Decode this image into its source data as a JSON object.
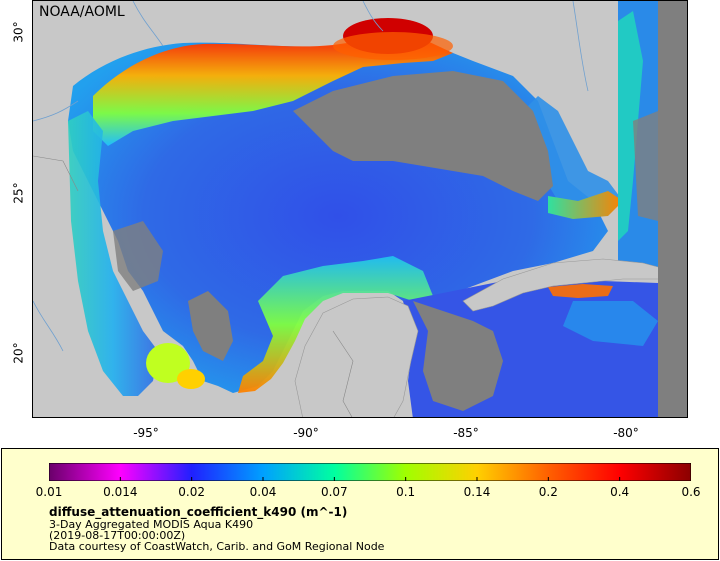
{
  "map": {
    "credit": "NOAA/AOML",
    "lat_ticks": [
      "30°",
      "25°",
      "20°"
    ],
    "lon_ticks": [
      "-95°",
      "-90°",
      "-85°",
      "-80°"
    ],
    "colors": {
      "land": "#c8c8c8",
      "no_data": "#7f7f7f",
      "water_low": "#2f5fe0",
      "water_mid": "#22a8ee",
      "coastal": "#ff6010",
      "river": "#6fa0d0"
    }
  },
  "legend": {
    "ticks": [
      "0.01",
      "0.014",
      "0.02",
      "0.04",
      "0.07",
      "0.1",
      "0.14",
      "0.2",
      "0.4",
      "0.6"
    ],
    "variable": "diffuse_attenuation_coefficient_k490 (m^-1)",
    "dataset": "3-Day Aggregated MODIS Aqua K490",
    "time": "(2019-08-17T00:00:00Z)",
    "attribution": "Data courtesy of CoastWatch, Carib. and GoM Regional Node",
    "colormap": [
      "#6a006a",
      "#ff00ff",
      "#2020ff",
      "#00a0ff",
      "#00ffa0",
      "#a0ff00",
      "#ffd000",
      "#ff6000",
      "#ff0000",
      "#8b0000"
    ]
  }
}
